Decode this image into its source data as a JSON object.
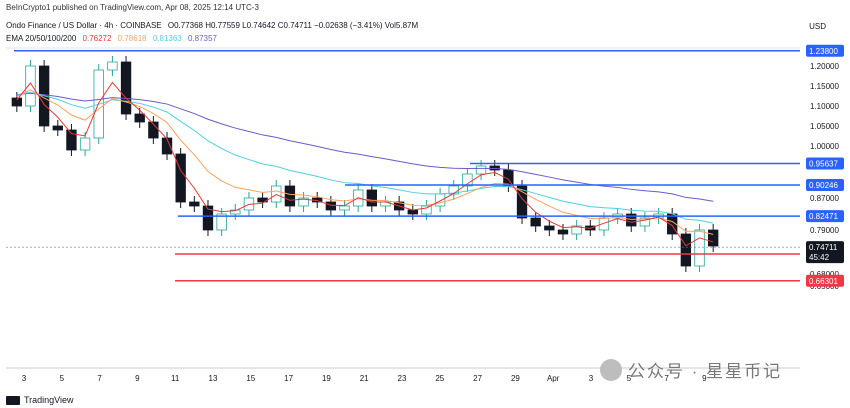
{
  "header": {
    "published": "BeInCrypto1 published on TradingView.com, Apr 08, 2025 12:14 UTC-3",
    "symbol": "Ondo Finance / US Dollar · 4h · COINBASE",
    "ohlc_text": "O0.77368 H0.77559 L0.74642 C0.74711 −0.02638 (−3.41%) Vol5.87M",
    "ema_label": "EMA 20/50/100/200",
    "ema_values": [
      "0.76272",
      "0.78618",
      "0.81363",
      "0.87357"
    ],
    "currency": "USD"
  },
  "colors": {
    "up": "#26a69a",
    "down": "#131722",
    "ema20": "#e53935",
    "ema50": "#ffa15c",
    "ema100": "#4dd0e1",
    "ema200": "#6a5acd",
    "resistance": "#2962ff",
    "support": "#f23645",
    "price_tag": "#131722"
  },
  "footer": {
    "brand": "TradingView"
  },
  "watermark": "公众号 · 星星币记",
  "chart_data": {
    "type": "candlestick",
    "ylim": [
      0.645,
      1.27
    ],
    "x_ticks": [
      "3",
      "5",
      "7",
      "9",
      "11",
      "13",
      "15",
      "17",
      "19",
      "21",
      "23",
      "25",
      "27",
      "29",
      "Apr",
      "3",
      "5",
      "7",
      "9"
    ],
    "y_ticks": [
      "1.20000",
      "1.15000",
      "1.10000",
      "1.05000",
      "1.00000",
      "0.87000",
      "0.79000",
      "0.68000",
      "0.65000"
    ],
    "levels": [
      {
        "value": 1.238,
        "label": "1.23800",
        "kind": "resistance"
      },
      {
        "value": 0.95637,
        "label": "0.95637",
        "kind": "resistance"
      },
      {
        "value": 0.90246,
        "label": "0.90246",
        "kind": "resistance"
      },
      {
        "value": 0.82471,
        "label": "0.82471",
        "kind": "resistance"
      },
      {
        "value": 0.73,
        "label": "0.73000",
        "kind": "support"
      },
      {
        "value": 0.66301,
        "label": "0.66301",
        "kind": "support"
      }
    ],
    "last_price": {
      "value": 0.74711,
      "label": "0.74711",
      "countdown": "45:42"
    },
    "ema20_last": 0.76272,
    "ema50_last": 0.78618,
    "ema100_last": 0.81363,
    "ema200_last": 0.87357,
    "close_path": [
      1.1,
      1.2,
      1.05,
      1.04,
      0.99,
      1.02,
      1.19,
      1.21,
      1.08,
      1.06,
      1.02,
      0.98,
      0.86,
      0.85,
      0.79,
      0.83,
      0.84,
      0.87,
      0.86,
      0.9,
      0.85,
      0.87,
      0.86,
      0.84,
      0.85,
      0.89,
      0.85,
      0.86,
      0.84,
      0.83,
      0.85,
      0.88,
      0.9,
      0.93,
      0.95,
      0.94,
      0.9,
      0.82,
      0.8,
      0.79,
      0.78,
      0.8,
      0.79,
      0.82,
      0.83,
      0.8,
      0.82,
      0.83,
      0.78,
      0.7,
      0.79,
      0.75
    ]
  }
}
